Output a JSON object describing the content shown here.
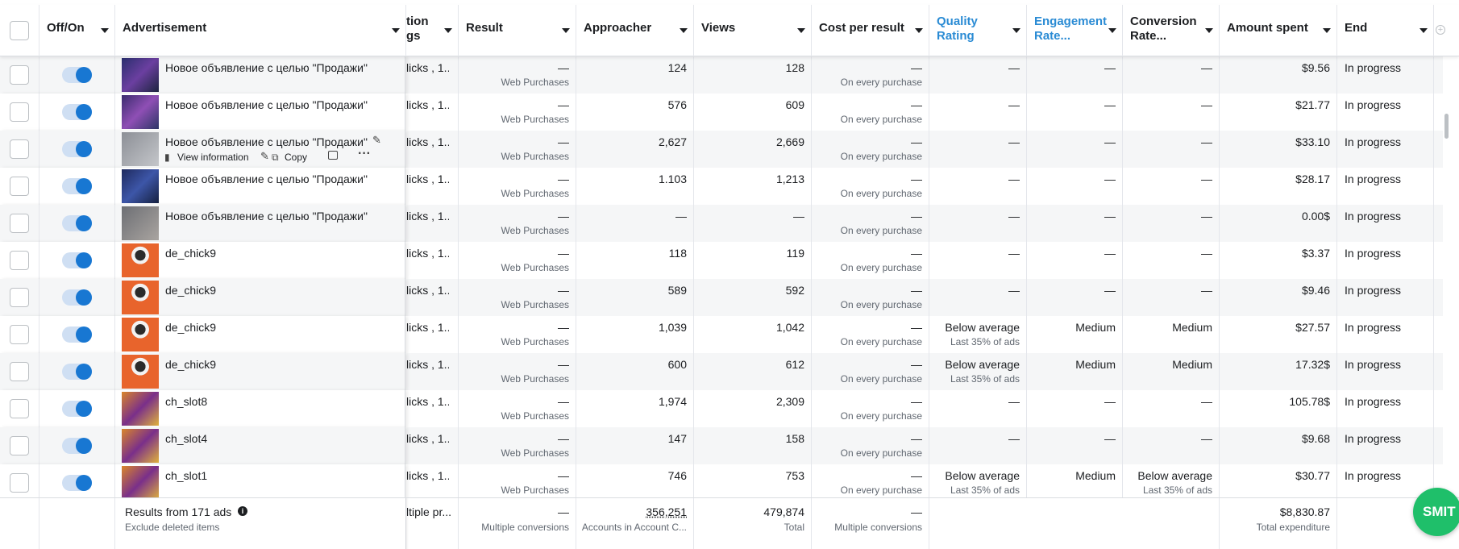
{
  "header": {
    "columns": [
      "Off/On",
      "Advertisement",
      {
        "lines": [
          "tion",
          "gs"
        ]
      },
      "Result",
      "Approacher",
      "Views",
      "Cost per result",
      "Quality Rating",
      "Engagement Rate...",
      "Conversion Rate...",
      "Amount spent",
      "End"
    ]
  },
  "rows": [
    {
      "name": "Новое объявление с целью \"Продажи\"",
      "bidding": "licks , 1...",
      "result": "—",
      "result_sub": "Web Purchases",
      "approacher": "124",
      "views": "128",
      "cost": "—",
      "cost_sub": "On every purchase",
      "quality": "—",
      "engagement": "—",
      "conversion": "—",
      "amount": "$9.56",
      "end": "In progress"
    },
    {
      "name": "Новое объявление с целью \"Продажи\"",
      "bidding": "licks , 1...",
      "result": "—",
      "result_sub": "Web Purchases",
      "approacher": "576",
      "views": "609",
      "cost": "—",
      "cost_sub": "On every purchase",
      "quality": "—",
      "engagement": "—",
      "conversion": "—",
      "amount": "$21.77",
      "end": "In progress"
    },
    {
      "name": "Новое объявление с целью \"Продажи\"",
      "actions": [
        "View information",
        "Copy"
      ],
      "bidding": "licks , 1...",
      "result": "—",
      "result_sub": "Web Purchases",
      "approacher": "2,627",
      "views": "2,669",
      "cost": "—",
      "cost_sub": "On every purchase",
      "quality": "—",
      "engagement": "—",
      "conversion": "—",
      "amount": "$33.10",
      "end": "In progress"
    },
    {
      "name": "Новое объявление с целью \"Продажи\"",
      "bidding": "licks , 1...",
      "result": "—",
      "result_sub": "Web Purchases",
      "approacher": "1.103",
      "views": "1,213",
      "cost": "—",
      "cost_sub": "On every purchase",
      "quality": "—",
      "engagement": "—",
      "conversion": "—",
      "amount": "$28.17",
      "end": "In progress"
    },
    {
      "name": "Новое объявление с целью \"Продажи\"",
      "bidding": "licks , 1...",
      "result": "—",
      "result_sub": "Web Purchases",
      "approacher": "—",
      "views": "—",
      "cost": "—",
      "cost_sub": "On every purchase",
      "quality": "—",
      "engagement": "—",
      "conversion": "—",
      "amount": "0.00$",
      "end": "In progress"
    },
    {
      "name": "de_chick9",
      "bidding": "licks , 1...",
      "result": "—",
      "result_sub": "Web Purchases",
      "approacher": "118",
      "views": "119",
      "cost": "—",
      "cost_sub": "On every purchase",
      "quality": "—",
      "engagement": "—",
      "conversion": "—",
      "amount": "$3.37",
      "end": "In progress"
    },
    {
      "name": "de_chick9",
      "bidding": "licks , 1...",
      "result": "—",
      "result_sub": "Web Purchases",
      "approacher": "589",
      "views": "592",
      "cost": "—",
      "cost_sub": "On every purchase",
      "quality": "—",
      "engagement": "—",
      "conversion": "—",
      "amount": "$9.46",
      "end": "In progress"
    },
    {
      "name": "de_chick9",
      "bidding": "licks , 1...",
      "result": "—",
      "result_sub": "Web Purchases",
      "approacher": "1,039",
      "views": "1,042",
      "cost": "—",
      "cost_sub": "On every purchase",
      "quality": "Below average",
      "quality_sub": "Last 35% of ads",
      "engagement": "Medium",
      "conversion": "Medium",
      "amount": "$27.57",
      "end": "In progress"
    },
    {
      "name": "de_chick9",
      "bidding": "licks , 1...",
      "result": "—",
      "result_sub": "Web Purchases",
      "approacher": "600",
      "views": "612",
      "cost": "—",
      "cost_sub": "On every purchase",
      "quality": "Below average",
      "quality_sub": "Last 35% of ads",
      "engagement": "Medium",
      "conversion": "Medium",
      "amount": "17.32$",
      "end": "In progress"
    },
    {
      "name": "ch_slot8",
      "bidding": "licks , 1...",
      "result": "—",
      "result_sub": "Web Purchases",
      "approacher": "1,974",
      "views": "2,309",
      "cost": "—",
      "cost_sub": "On every purchase",
      "quality": "—",
      "engagement": "—",
      "conversion": "—",
      "amount": "105.78$",
      "end": "In progress"
    },
    {
      "name": "ch_slot4",
      "bidding": "licks , 1...",
      "result": "—",
      "result_sub": "Web Purchases",
      "approacher": "147",
      "views": "158",
      "cost": "—",
      "cost_sub": "On every purchase",
      "quality": "—",
      "engagement": "—",
      "conversion": "—",
      "amount": "$9.68",
      "end": "In progress"
    },
    {
      "name": "ch_slot1",
      "bidding": "licks , 1...",
      "result": "—",
      "result_sub": "Web Purchases",
      "approacher": "746",
      "views": "753",
      "cost": "—",
      "cost_sub": "On every purchase",
      "quality": "Below average",
      "quality_sub": "Last 35% of ads",
      "engagement": "Medium",
      "conversion": "Below average",
      "conversion_sub": "Last 35% of ads",
      "amount": "$30.77",
      "end": "In progress"
    }
  ],
  "footer": {
    "summary": "Results from 171 ads",
    "note": "Exclude deleted items",
    "bidding": "ltiple pr...",
    "result": "—",
    "result_sub": "Multiple conversions",
    "approacher": "356,251",
    "approacher_sub": "Accounts in Account C...",
    "views": "479,874",
    "views_sub": "Total",
    "cost": "—",
    "cost_sub": "Multiple conversions",
    "amount": "$8,830.87",
    "amount_sub": "Total expenditure"
  },
  "badge": "SMIT"
}
